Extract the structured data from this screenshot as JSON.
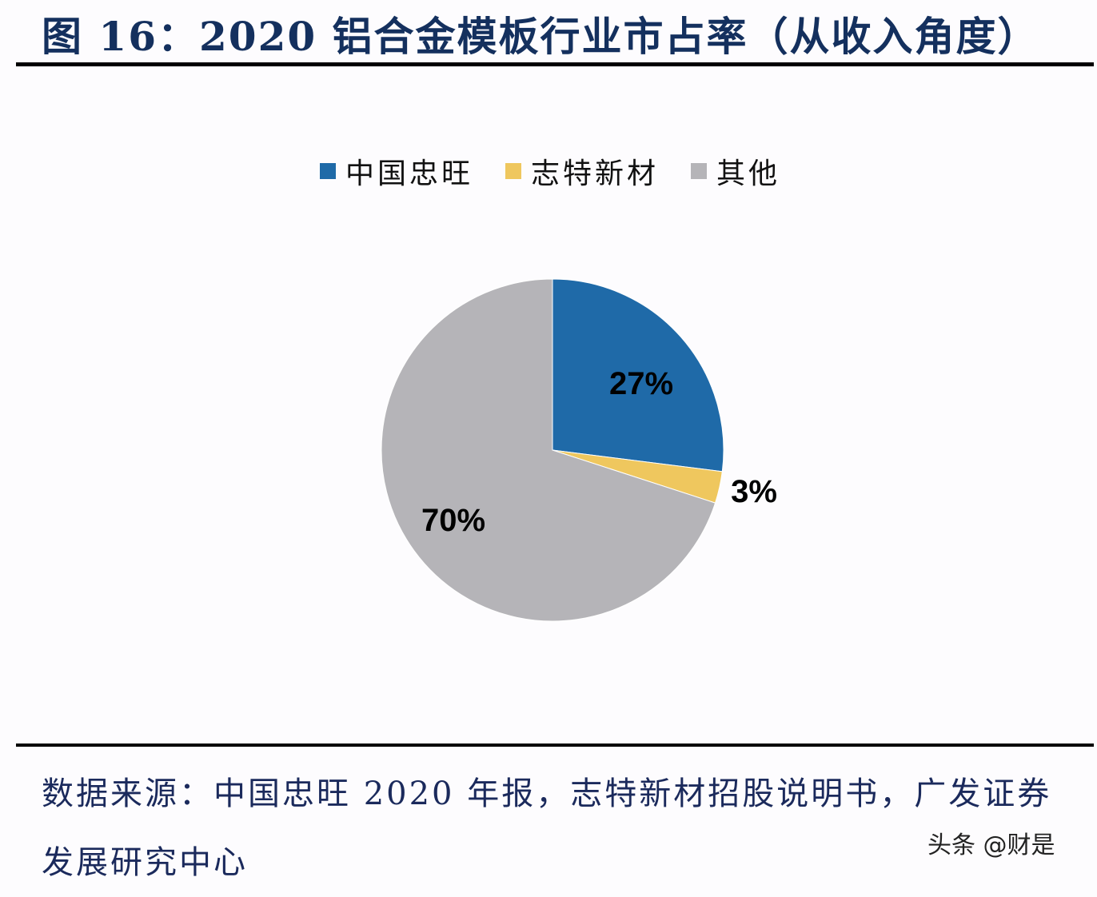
{
  "header": {
    "title": "图 16：2020 铝合金模板行业市占率（从收入角度）"
  },
  "chart_data": {
    "type": "pie",
    "title": "2020 铝合金模板行业市占率（从收入角度）",
    "categories": [
      "中国忠旺",
      "志特新材",
      "其他"
    ],
    "values": [
      27,
      3,
      70
    ],
    "labels": [
      "27%",
      "3%",
      "70%"
    ],
    "colors": [
      "#1f6aa8",
      "#efc75e",
      "#b5b4b8"
    ],
    "legend_position": "top",
    "start_angle": "12 o'clock, clockwise"
  },
  "legend": {
    "items": [
      {
        "label": "中国忠旺",
        "color": "#1f6aa8"
      },
      {
        "label": "志特新材",
        "color": "#efc75e"
      },
      {
        "label": "其他",
        "color": "#b5b4b8"
      }
    ]
  },
  "footer": {
    "source": "数据来源：中国忠旺 2020 年报，志特新材招股说明书，广发证券发展研究中心",
    "watermark": "头条 @财是"
  }
}
